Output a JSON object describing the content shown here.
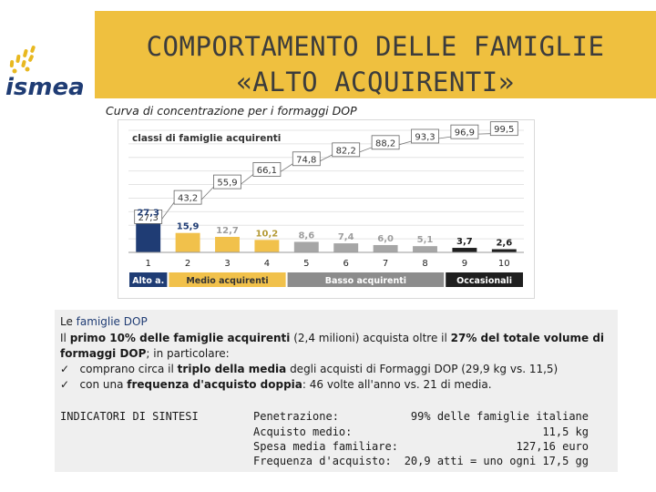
{
  "header": {
    "title_line1": "COMPORTAMENTO DELLE FAMIGLIE",
    "title_line2": "«ALTO ACQUIRENTI»",
    "brand": "ismea",
    "header_color": "#efc03f"
  },
  "subtitle": "Curva di concentrazione per i formaggi DOP",
  "chart_data": {
    "type": "bar",
    "title": "classi di famiglie acquirenti",
    "categories": [
      "1",
      "2",
      "3",
      "4",
      "5",
      "6",
      "7",
      "8",
      "9",
      "10"
    ],
    "series": [
      {
        "values": [
          27.3,
          15.9,
          12.7,
          10.2,
          8.6,
          7.4,
          6.0,
          5.1,
          3.7,
          2.6
        ]
      }
    ],
    "bar_labels": [
      "27,3",
      "15,9",
      "12,7",
      "10,2",
      "8,6",
      "7,4",
      "6,0",
      "5,1",
      "3,7",
      "2,6"
    ],
    "cumulative_line": {
      "values": [
        27.3,
        43.2,
        55.9,
        66.1,
        74.8,
        82.2,
        88.2,
        93.3,
        96.9,
        99.5
      ],
      "labels": [
        "27,3",
        "43,2",
        "55,9",
        "66,1",
        "74,8",
        "82,2",
        "88,2",
        "93,3",
        "96,9",
        "99,5"
      ]
    },
    "ylim": [
      0,
      100
    ],
    "grid": true,
    "groups": [
      {
        "label": "Alto a.",
        "from": 1,
        "to": 1,
        "color": "#1f3c74"
      },
      {
        "label": "Medio acquirenti",
        "from": 2,
        "to": 4,
        "color": "#f1c14b"
      },
      {
        "label": "Basso acquirenti",
        "from": 5,
        "to": 8,
        "color": "#8c8c8c"
      },
      {
        "label": "Occasionali",
        "from": 9,
        "to": 10,
        "color": "#1f1f1f"
      }
    ],
    "bar_colors": [
      "#1f3c74",
      "#f1c14b",
      "#f1c14b",
      "#f1c14b",
      "#a6a6a6",
      "#a6a6a6",
      "#a6a6a6",
      "#a6a6a6",
      "#1f1f1f",
      "#1f1f1f"
    ],
    "label_colors": [
      "#1f3c74",
      "#1f3c74",
      "#9e9e9e",
      "#b49a36",
      "#9e9e9e",
      "#9e9e9e",
      "#9e9e9e",
      "#9e9e9e",
      "#1f1f1f",
      "#1f1f1f"
    ]
  },
  "info": {
    "line1_prefix": "Le ",
    "line1_bold": "famiglie DOP",
    "line2_a": "Il ",
    "line2_bold1": "primo 10% delle famiglie acquirenti",
    "line2_b": " (2,4 milioni) acquista oltre il ",
    "line2_bold2": "27% del totale volume di",
    "line3_bold": "formaggi DOP",
    "line3_rest": "; in particolare:",
    "check_icon": "ü",
    "bullet1_a": "comprano circa il ",
    "bullet1_bold": "triplo della media",
    "bullet1_b": " degli acquisti di Formaggi DOP (29,9 kg vs. 11,5)",
    "bullet2_a": "con una ",
    "bullet2_bold": "frequenza d'acquisto doppia",
    "bullet2_b": ": 46 volte all'anno vs. 21 di media.",
    "indicators_title": "INDICATORI DI SINTESI",
    "indicators": [
      {
        "label": "Penetrazione",
        "suffix": ":",
        "value": "99% delle famiglie italiane"
      },
      {
        "label": "Acquisto medio",
        "suffix": ":",
        "value": "11,5 kg"
      },
      {
        "label": "Spesa media familiare",
        "suffix": ":",
        "value": "127,16 euro"
      },
      {
        "label": "Frequenza d'acquisto",
        "suffix": ":",
        "value": "20,9 atti = uno ogni 17,5 gg"
      }
    ]
  }
}
